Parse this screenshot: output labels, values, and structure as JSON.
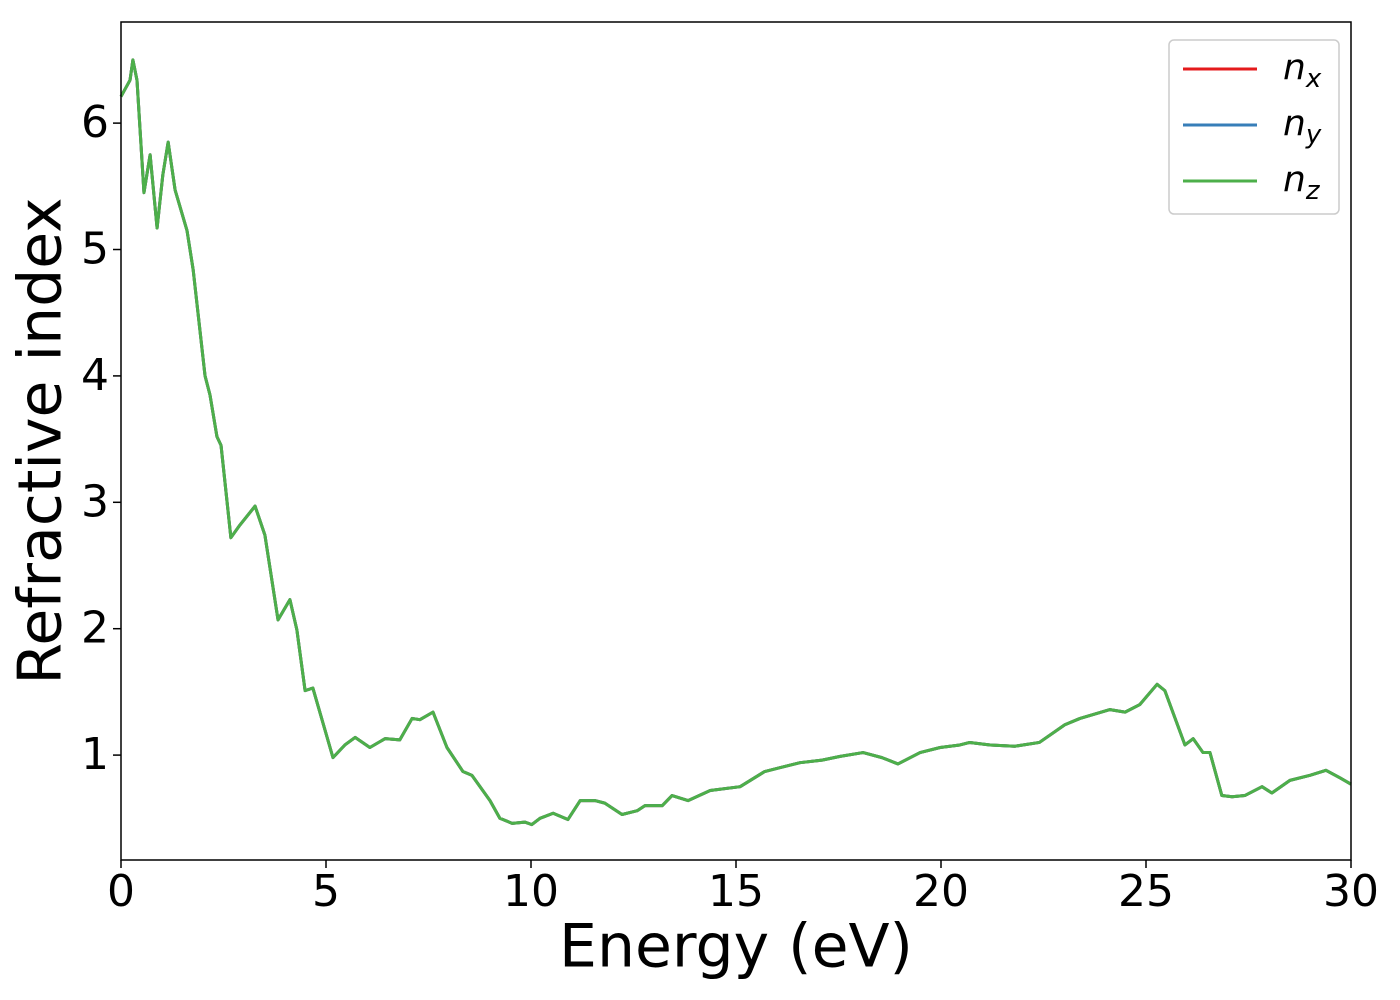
{
  "chart_data": {
    "type": "line",
    "x_label": "Energy (eV)",
    "y_label": "Refractive index",
    "x": [
      0,
      0.22,
      0.29,
      0.39,
      0.56,
      0.71,
      0.88,
      1.02,
      1.15,
      1.32,
      1.61,
      1.76,
      2.05,
      2.17,
      2.34,
      2.44,
      2.68,
      2.9,
      3.27,
      3.51,
      3.83,
      4.12,
      4.29,
      4.49,
      4.68,
      5.17,
      5.46,
      5.71,
      6.07,
      6.44,
      6.8,
      7.1,
      7.29,
      7.61,
      7.95,
      8.34,
      8.56,
      9.0,
      9.24,
      9.54,
      9.85,
      10.02,
      10.22,
      10.54,
      10.9,
      11.2,
      11.56,
      11.8,
      12.22,
      12.59,
      12.78,
      13.2,
      13.44,
      13.83,
      14.37,
      15.1,
      15.7,
      16.07,
      16.56,
      17.1,
      17.54,
      18.1,
      18.56,
      18.95,
      19.49,
      19.98,
      20.46,
      20.7,
      21.2,
      21.8,
      22.4,
      23.02,
      23.39,
      24.12,
      24.49,
      24.85,
      25.27,
      25.46,
      25.95,
      26.15,
      26.39,
      26.56,
      26.85,
      27.1,
      27.41,
      27.83,
      28.07,
      28.51,
      29.0,
      29.39,
      29.73,
      30.0
    ],
    "series": [
      {
        "name": "nx",
        "color": "#e41a1c",
        "values": [
          6.21,
          6.34,
          6.5,
          6.34,
          5.45,
          5.75,
          5.17,
          5.59,
          5.85,
          5.47,
          5.15,
          4.84,
          4.0,
          3.85,
          3.52,
          3.45,
          2.72,
          2.82,
          2.97,
          2.74,
          2.07,
          2.23,
          1.99,
          1.51,
          1.53,
          0.98,
          1.08,
          1.14,
          1.06,
          1.13,
          1.12,
          1.29,
          1.28,
          1.34,
          1.06,
          0.87,
          0.84,
          0.64,
          0.5,
          0.46,
          0.47,
          0.45,
          0.5,
          0.54,
          0.49,
          0.64,
          0.64,
          0.62,
          0.53,
          0.56,
          0.6,
          0.6,
          0.68,
          0.64,
          0.72,
          0.75,
          0.87,
          0.9,
          0.94,
          0.96,
          0.99,
          1.02,
          0.98,
          0.93,
          1.02,
          1.06,
          1.08,
          1.1,
          1.08,
          1.07,
          1.1,
          1.24,
          1.29,
          1.36,
          1.34,
          1.4,
          1.56,
          1.51,
          1.08,
          1.13,
          1.02,
          1.02,
          0.68,
          0.67,
          0.68,
          0.75,
          0.7,
          0.8,
          0.84,
          0.88,
          0.82,
          0.77
        ]
      },
      {
        "name": "ny",
        "color": "#377eb8",
        "values": [
          6.21,
          6.34,
          6.5,
          6.34,
          5.45,
          5.75,
          5.17,
          5.59,
          5.85,
          5.47,
          5.15,
          4.84,
          4.0,
          3.85,
          3.52,
          3.45,
          2.72,
          2.82,
          2.97,
          2.74,
          2.07,
          2.23,
          1.99,
          1.51,
          1.53,
          0.98,
          1.08,
          1.14,
          1.06,
          1.13,
          1.12,
          1.29,
          1.28,
          1.34,
          1.06,
          0.87,
          0.84,
          0.64,
          0.5,
          0.46,
          0.47,
          0.45,
          0.5,
          0.54,
          0.49,
          0.64,
          0.64,
          0.62,
          0.53,
          0.56,
          0.6,
          0.6,
          0.68,
          0.64,
          0.72,
          0.75,
          0.87,
          0.9,
          0.94,
          0.96,
          0.99,
          1.02,
          0.98,
          0.93,
          1.02,
          1.06,
          1.08,
          1.1,
          1.08,
          1.07,
          1.1,
          1.24,
          1.29,
          1.36,
          1.34,
          1.4,
          1.56,
          1.51,
          1.08,
          1.13,
          1.02,
          1.02,
          0.68,
          0.67,
          0.68,
          0.75,
          0.7,
          0.8,
          0.84,
          0.88,
          0.82,
          0.77
        ]
      },
      {
        "name": "nz",
        "color": "#4daf4a",
        "values": [
          6.21,
          6.34,
          6.5,
          6.34,
          5.45,
          5.75,
          5.17,
          5.59,
          5.85,
          5.47,
          5.15,
          4.84,
          4.0,
          3.85,
          3.52,
          3.45,
          2.72,
          2.82,
          2.97,
          2.74,
          2.07,
          2.23,
          1.99,
          1.51,
          1.53,
          0.98,
          1.08,
          1.14,
          1.06,
          1.13,
          1.12,
          1.29,
          1.28,
          1.34,
          1.06,
          0.87,
          0.84,
          0.64,
          0.5,
          0.46,
          0.47,
          0.45,
          0.5,
          0.54,
          0.49,
          0.64,
          0.64,
          0.62,
          0.53,
          0.56,
          0.6,
          0.6,
          0.68,
          0.64,
          0.72,
          0.75,
          0.87,
          0.9,
          0.94,
          0.96,
          0.99,
          1.02,
          0.98,
          0.93,
          1.02,
          1.06,
          1.08,
          1.1,
          1.08,
          1.07,
          1.1,
          1.24,
          1.29,
          1.36,
          1.34,
          1.4,
          1.56,
          1.51,
          1.08,
          1.13,
          1.02,
          1.02,
          0.68,
          0.67,
          0.68,
          0.75,
          0.7,
          0.8,
          0.84,
          0.88,
          0.82,
          0.77
        ]
      }
    ],
    "xlim": [
      0,
      30
    ],
    "xticks": [
      0,
      5,
      10,
      15,
      20,
      25,
      30
    ],
    "ylim": [
      0.17,
      6.8
    ],
    "yticks": [
      1,
      2,
      3,
      4,
      5,
      6
    ],
    "grid": false,
    "legend": "upper right"
  }
}
